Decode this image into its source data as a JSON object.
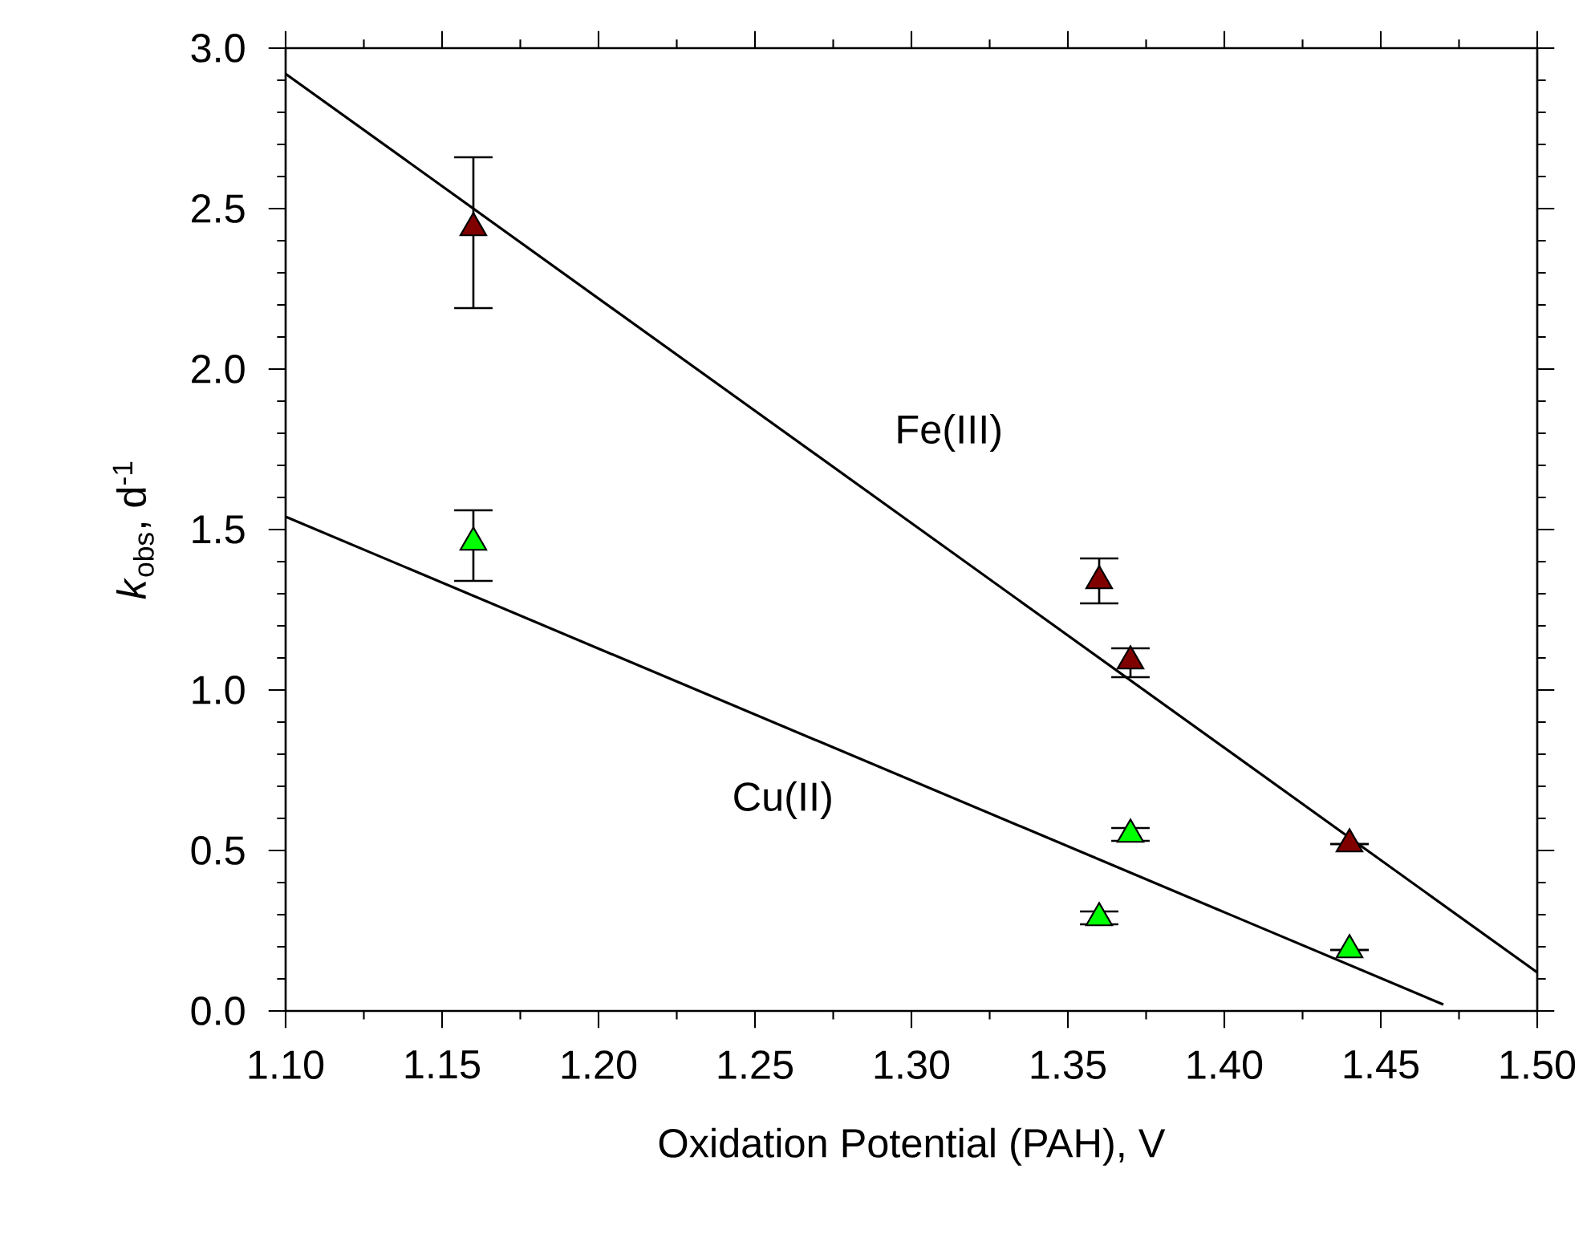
{
  "chart_data": {
    "type": "scatter",
    "xlabel": "Oxidation Potential (PAH), V",
    "ylabel": "*k*$_{obs}$, d$^{-1}$",
    "xlim": [
      1.1,
      1.5
    ],
    "xticks": [
      {
        "value": 1.1,
        "label": "1.10"
      },
      {
        "value": 1.15,
        "label": "1.15"
      },
      {
        "value": 1.2,
        "label": "1.20"
      },
      {
        "value": 1.25,
        "label": "1.25"
      },
      {
        "value": 1.3,
        "label": "1.30"
      },
      {
        "value": 1.35,
        "label": "1.35"
      },
      {
        "value": 1.4,
        "label": "1.40"
      },
      {
        "value": 1.45,
        "label": "1.45"
      },
      {
        "value": 1.5,
        "label": "1.50"
      }
    ],
    "ylim": [
      0,
      3.0
    ],
    "yticks": [
      {
        "value": 0,
        "label": "0.0"
      },
      {
        "value": 0.5,
        "label": "0.5"
      },
      {
        "value": 1.0,
        "label": "1.0"
      },
      {
        "value": 1.5,
        "label": "1.5"
      },
      {
        "value": 2.0,
        "label": "2.0"
      },
      {
        "value": 2.5,
        "label": "2.5"
      },
      {
        "value": 3.0,
        "label": "3.0"
      }
    ],
    "marker": "triangle",
    "series": [
      {
        "color": "#800000",
        "x": [
          1.16,
          1.36,
          1.37,
          1.44
        ],
        "values": [
          2.44,
          1.34,
          1.09,
          0.52
        ],
        "errors": [
          [
            2.19,
            2.66
          ],
          [
            1.27,
            1.41
          ],
          [
            1.04,
            1.13
          ],
          null
        ]
      },
      {
        "color": "#00ff00",
        "x": [
          1.16,
          1.36,
          1.37,
          1.44
        ],
        "values": [
          1.46,
          0.29,
          0.55,
          0.19
        ],
        "errors": [
          [
            1.34,
            1.56
          ],
          [
            0.27,
            0.31
          ],
          [
            0.53,
            0.57
          ],
          null
        ]
      },
      {
        "type": "line",
        "name": "Fe(III)",
        "color": "#000000",
        "marker": "none",
        "x": [
          1.1,
          1.5
        ],
        "values": [
          2.92,
          0.12
        ]
      },
      {
        "type": "line",
        "name": "Cu(II)",
        "color": "#000000",
        "marker": "none",
        "x": [
          1.1,
          1.47
        ],
        "values": [
          1.54,
          0.02
        ]
      }
    ]
  }
}
